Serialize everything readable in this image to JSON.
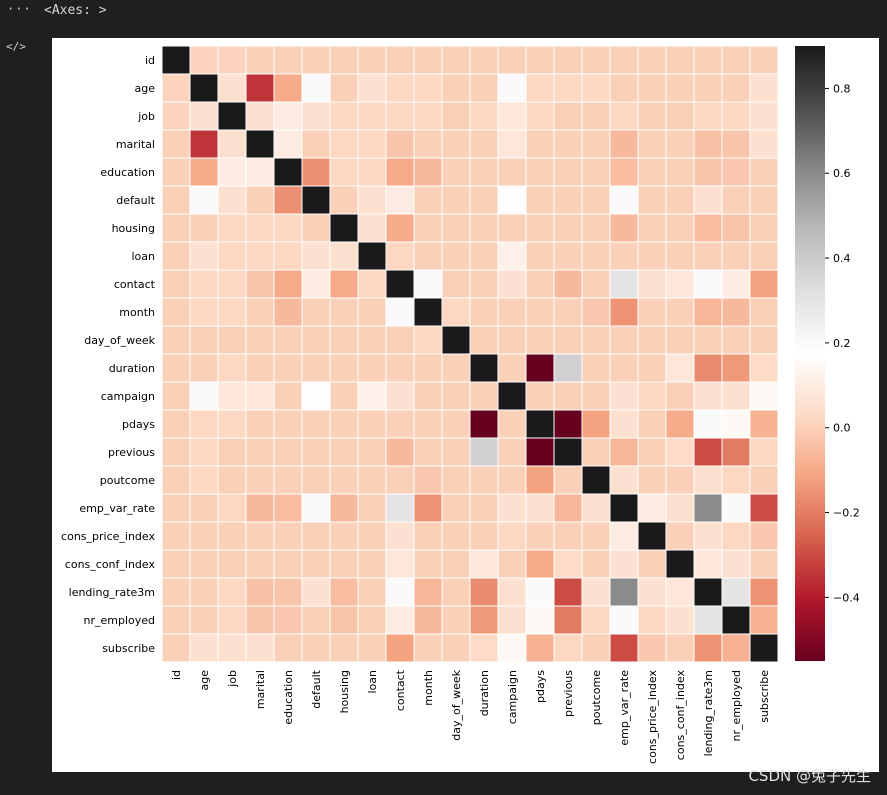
{
  "ui": {
    "more_icon": "···",
    "code_icon": "</>",
    "cell_output": "<Axes: >",
    "watermark": "CSDN @兔子先生"
  },
  "chart_data": {
    "type": "heatmap",
    "labels": [
      "id",
      "age",
      "job",
      "marital",
      "education",
      "default",
      "housing",
      "loan",
      "contact",
      "month",
      "day_of_week",
      "duration",
      "campaign",
      "pdays",
      "previous",
      "poutcome",
      "emp_var_rate",
      "cons_price_index",
      "cons_conf_index",
      "lending_rate3m",
      "nr_employed",
      "subscribe"
    ],
    "matrix": [
      [
        1,
        0.01,
        0.01,
        0.0,
        0.0,
        0.0,
        0.0,
        0.0,
        0.0,
        0.0,
        0.0,
        0.0,
        0.0,
        0.0,
        0.0,
        0.0,
        0.0,
        0.0,
        0.0,
        0.0,
        0.0,
        0.0
      ],
      [
        0.01,
        1,
        0.05,
        -0.35,
        -0.1,
        0.2,
        0.0,
        0.05,
        0.02,
        0.02,
        0.0,
        0.0,
        0.2,
        0.02,
        0.02,
        0.02,
        0.0,
        0.0,
        0.0,
        0.0,
        0.0,
        0.05
      ],
      [
        0.01,
        0.05,
        1,
        0.05,
        0.1,
        0.05,
        0.02,
        0.02,
        0.02,
        0.02,
        0.0,
        0.02,
        0.08,
        0.02,
        0.0,
        0.0,
        0.02,
        0.0,
        0.0,
        0.02,
        0.02,
        0.05
      ],
      [
        0.0,
        -0.35,
        0.05,
        1,
        0.1,
        0.0,
        0.02,
        0.02,
        -0.03,
        0.0,
        0.0,
        0.0,
        0.08,
        0.0,
        0.0,
        0.0,
        -0.06,
        0.0,
        0.0,
        -0.04,
        -0.03,
        0.05
      ],
      [
        0.0,
        -0.1,
        0.1,
        0.1,
        1,
        -0.16,
        0.02,
        0.02,
        -0.1,
        -0.06,
        0.0,
        0.0,
        0.0,
        0.0,
        0.0,
        0.0,
        -0.05,
        0.0,
        0.0,
        -0.03,
        -0.02,
        0.0
      ],
      [
        0.0,
        0.2,
        0.05,
        0.0,
        -0.16,
        1,
        0.0,
        0.05,
        0.1,
        0.0,
        0.0,
        0.0,
        0.18,
        0.0,
        0.0,
        0.0,
        0.2,
        0.0,
        0.0,
        0.05,
        0.0,
        0.0
      ],
      [
        0.0,
        0.0,
        0.02,
        0.02,
        0.02,
        0.0,
        1,
        0.05,
        -0.1,
        0.0,
        0.0,
        0.0,
        0.0,
        0.0,
        0.0,
        0.0,
        -0.06,
        0.0,
        0.0,
        -0.05,
        -0.03,
        0.0
      ],
      [
        0.0,
        0.05,
        0.02,
        0.02,
        0.02,
        0.05,
        0.05,
        1,
        0.02,
        0.0,
        0.0,
        0.0,
        0.12,
        0.0,
        0.0,
        0.0,
        0.0,
        0.0,
        0.0,
        0.0,
        0.0,
        0.0
      ],
      [
        0.0,
        0.02,
        0.02,
        -0.03,
        -0.1,
        0.1,
        -0.1,
        0.02,
        1,
        0.2,
        0.0,
        0.0,
        0.05,
        0.0,
        -0.06,
        0.0,
        0.3,
        0.05,
        0.08,
        0.2,
        0.1,
        -0.12
      ],
      [
        0.0,
        0.02,
        0.02,
        0.0,
        -0.06,
        0.0,
        0.0,
        0.0,
        0.2,
        1,
        0.02,
        0.0,
        0.0,
        0.0,
        0.0,
        -0.02,
        -0.15,
        0.0,
        0.0,
        -0.07,
        -0.06,
        0.0
      ],
      [
        0.0,
        0.0,
        0.0,
        0.0,
        0.0,
        0.0,
        0.0,
        0.0,
        0.0,
        0.02,
        1,
        0.0,
        0.0,
        0.0,
        0.0,
        0.0,
        0.0,
        0.0,
        0.0,
        0.0,
        0.0,
        0.0
      ],
      [
        0.0,
        0.0,
        0.02,
        0.0,
        0.0,
        0.0,
        0.0,
        0.0,
        0.0,
        0.0,
        0.0,
        1,
        0.0,
        -0.55,
        0.38,
        0.0,
        0.0,
        0.0,
        0.08,
        -0.17,
        -0.14,
        0.03
      ],
      [
        0.0,
        0.2,
        0.08,
        0.08,
        0.0,
        0.18,
        0.0,
        0.12,
        0.05,
        0.0,
        0.0,
        0.0,
        1,
        0.0,
        0.0,
        0.0,
        0.05,
        0.02,
        0.0,
        0.05,
        0.05,
        0.15
      ],
      [
        0.0,
        0.02,
        0.02,
        0.0,
        0.0,
        0.0,
        0.0,
        0.0,
        0.0,
        0.0,
        0.0,
        -0.55,
        0.0,
        1,
        -0.55,
        -0.12,
        0.05,
        0.0,
        -0.1,
        0.2,
        0.15,
        -0.08
      ],
      [
        0.0,
        0.02,
        0.0,
        0.0,
        0.0,
        0.0,
        0.0,
        0.0,
        -0.06,
        0.0,
        0.0,
        0.38,
        0.0,
        -0.55,
        1,
        0.0,
        -0.07,
        0.0,
        0.03,
        -0.3,
        -0.2,
        0.02
      ],
      [
        0.0,
        0.02,
        0.0,
        0.0,
        0.0,
        0.0,
        0.0,
        0.0,
        0.0,
        -0.02,
        0.0,
        0.0,
        0.0,
        -0.12,
        0.0,
        1,
        0.05,
        0.0,
        0.0,
        0.05,
        0.02,
        0.0
      ],
      [
        0.0,
        0.0,
        0.02,
        -0.06,
        -0.05,
        0.2,
        -0.06,
        0.0,
        0.3,
        -0.15,
        0.0,
        0.0,
        0.05,
        0.05,
        -0.07,
        0.05,
        1,
        0.1,
        0.05,
        0.6,
        0.2,
        -0.3
      ],
      [
        0.0,
        0.0,
        0.0,
        0.0,
        0.0,
        0.0,
        0.0,
        0.0,
        0.05,
        0.0,
        0.0,
        0.0,
        0.02,
        0.0,
        0.0,
        0.0,
        0.1,
        1,
        0.0,
        0.05,
        0.02,
        -0.02
      ],
      [
        0.0,
        0.0,
        0.0,
        0.0,
        0.0,
        0.0,
        0.0,
        0.0,
        0.08,
        0.0,
        0.0,
        0.08,
        0.0,
        -0.1,
        0.03,
        0.0,
        0.05,
        0.0,
        1,
        0.08,
        0.05,
        0.0
      ],
      [
        0.0,
        0.0,
        0.02,
        -0.04,
        -0.03,
        0.05,
        -0.05,
        0.0,
        0.2,
        -0.07,
        0.0,
        -0.17,
        0.05,
        0.2,
        -0.3,
        0.05,
        0.6,
        0.05,
        0.08,
        1,
        0.3,
        -0.15
      ],
      [
        0.0,
        0.0,
        0.02,
        -0.03,
        -0.02,
        0.0,
        -0.03,
        0.0,
        0.1,
        -0.06,
        0.0,
        -0.14,
        0.05,
        0.15,
        -0.2,
        0.02,
        0.2,
        0.02,
        0.05,
        0.3,
        1,
        -0.08
      ],
      [
        0.0,
        0.05,
        0.05,
        0.05,
        0.0,
        0.0,
        0.0,
        0.0,
        -0.12,
        0.0,
        0.0,
        0.03,
        0.15,
        -0.08,
        0.02,
        0.0,
        -0.3,
        -0.02,
        0.0,
        -0.15,
        -0.08,
        1
      ]
    ],
    "vmin": -0.55,
    "vmax": 0.9,
    "colormap": "RdGy",
    "colorbar_ticks": [
      0.8,
      0.6,
      0.4,
      0.2,
      0.0,
      -0.2,
      -0.4
    ],
    "colorbar_tick_labels": [
      "0.8",
      "0.6",
      "0.4",
      "0.2",
      "0.0",
      "−0.2",
      "−0.4"
    ],
    "colors": {
      "low": "#67001f",
      "mid": "#ffffff",
      "high": "#1a1a1a",
      "cell_border": "#ffffff"
    }
  }
}
